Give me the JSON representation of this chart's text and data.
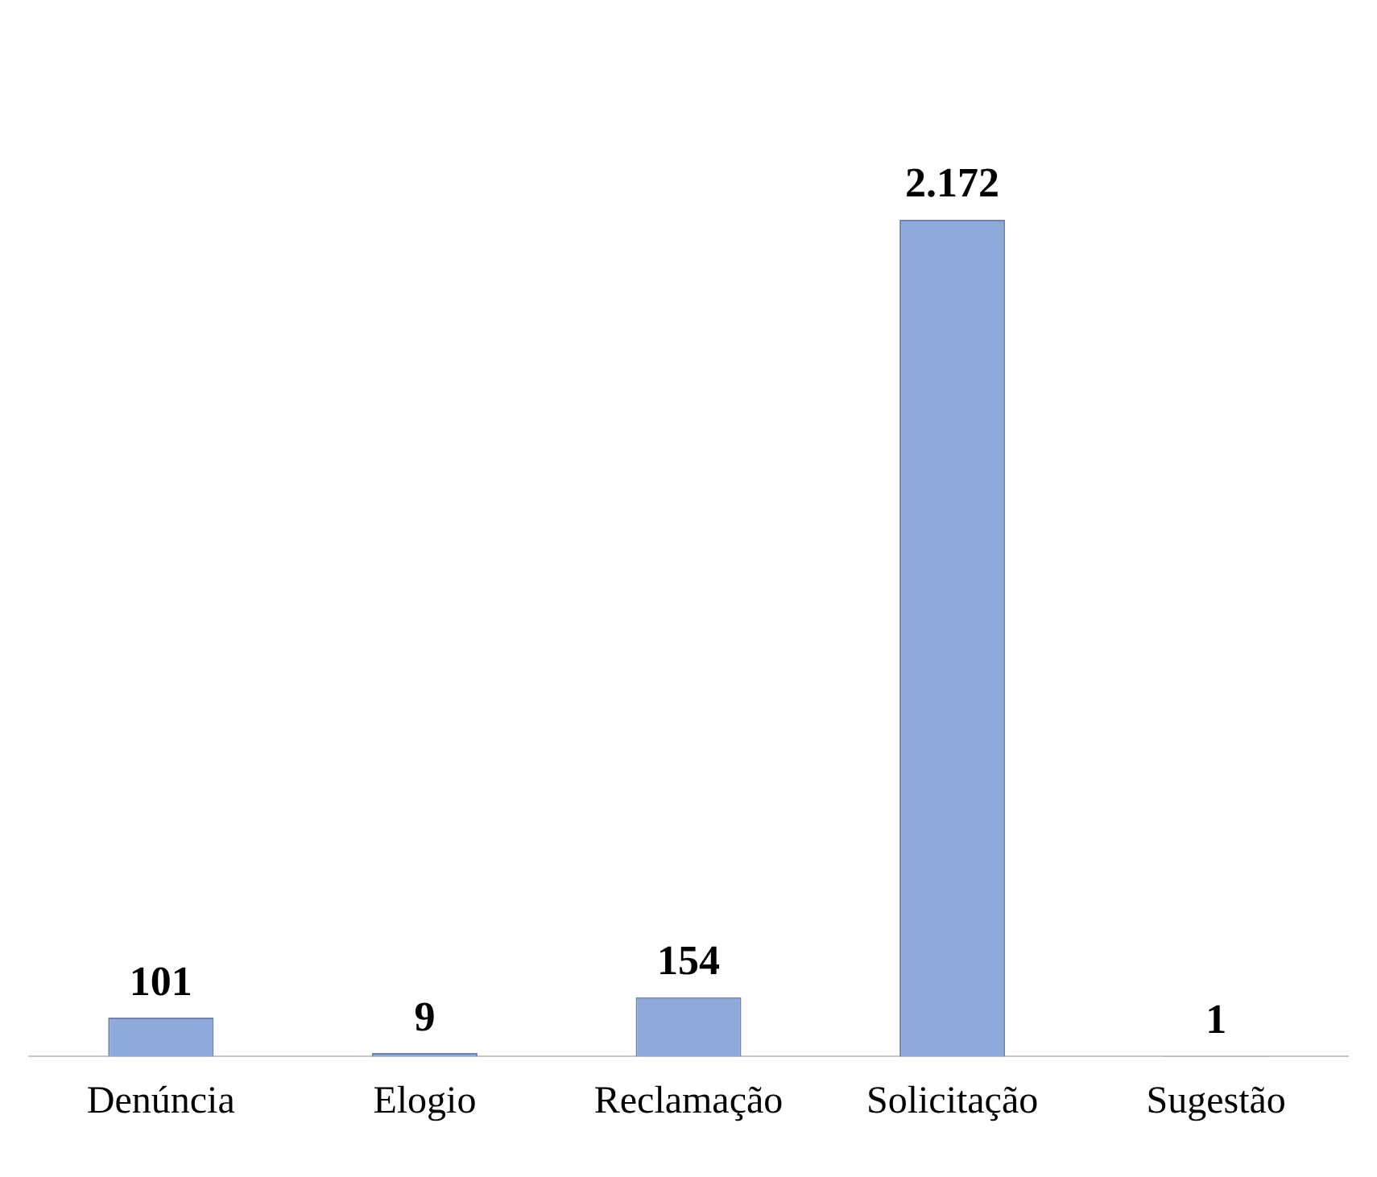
{
  "chart_data": {
    "type": "bar",
    "categories": [
      "Denúncia",
      "Elogio",
      "Reclamação",
      "Solicitação",
      "Sugestão"
    ],
    "values": [
      101,
      9,
      154,
      2172,
      1
    ],
    "color": "#8eaadb",
    "value_labels": [
      "101",
      "9",
      "154",
      "2.172",
      "1"
    ],
    "grid": false,
    "legend": false
  }
}
